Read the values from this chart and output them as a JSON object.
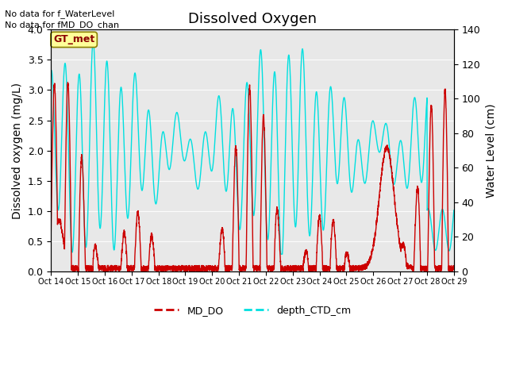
{
  "title": "Dissolved Oxygen",
  "ylabel_left": "Dissolved oxygen (mg/L)",
  "ylabel_right": "Water Level (cm)",
  "ylim_left": [
    0.0,
    4.0
  ],
  "ylim_right": [
    0,
    140
  ],
  "yticks_left": [
    0.0,
    0.5,
    1.0,
    1.5,
    2.0,
    2.5,
    3.0,
    3.5,
    4.0
  ],
  "yticks_right": [
    0,
    20,
    40,
    60,
    80,
    100,
    120,
    140
  ],
  "xtick_labels": [
    "Oct 14",
    "Oct 15",
    "Oct 16",
    "Oct 17",
    "Oct 18",
    "Oct 19",
    "Oct 20",
    "Oct 21",
    "Oct 22",
    "Oct 23",
    "Oct 24",
    "Oct 25",
    "Oct 26",
    "Oct 27",
    "Oct 28",
    "Oct 29"
  ],
  "annotation1": "No data for f_WaterLevel",
  "annotation2": "No data for f̲MD_DO_chan",
  "gt_label": "GT_met",
  "color_md_do": "#cc0000",
  "color_ctd": "#00e0e0",
  "legend_label1": "MD_DO",
  "legend_label2": "depth_CTD_cm",
  "bg_color": "#e8e8e8",
  "title_fontsize": 13,
  "axis_fontsize": 10
}
